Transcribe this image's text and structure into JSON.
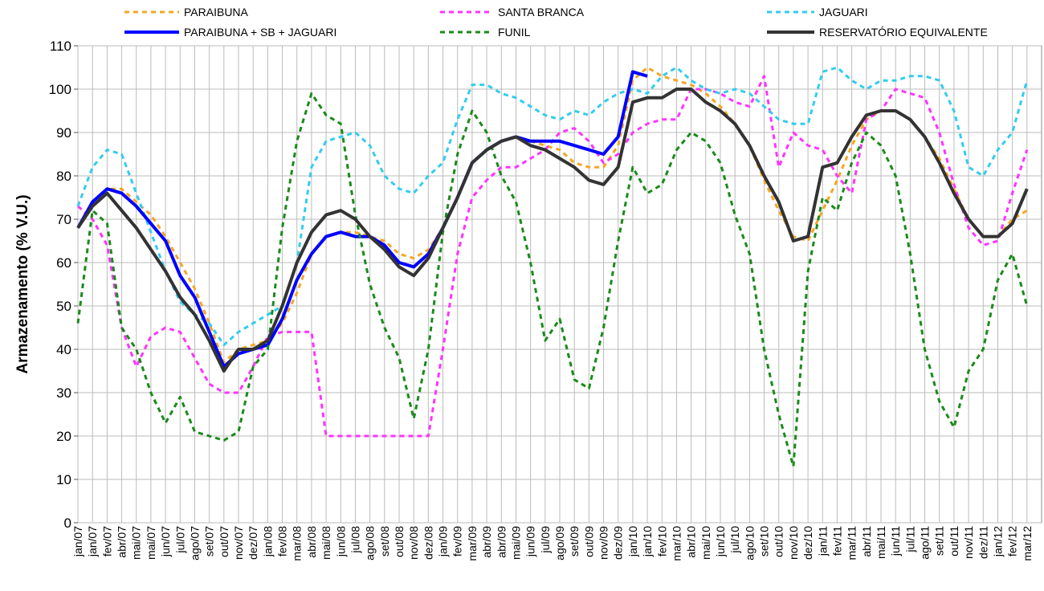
{
  "chart_data": {
    "type": "line",
    "y_label": "Armazenamento (% V.U.)",
    "categories": [
      "jan/07",
      "jan/07",
      "fev/07",
      "abr/07",
      "mai/07",
      "mai/07",
      "jun/07",
      "jul/07",
      "ago/07",
      "set/07",
      "out/07",
      "nov/07",
      "dez/07",
      "jan/08",
      "fev/08",
      "mar/08",
      "abr/08",
      "mai/08",
      "jun/08",
      "jul/08",
      "ago/08",
      "set/08",
      "out/08",
      "nov/08",
      "dez/08",
      "jan/09",
      "fev/09",
      "mar/09",
      "abr/09",
      "abr/09",
      "mai/09",
      "jun/09",
      "jul/09",
      "ago/09",
      "set/09",
      "out/09",
      "nov/09",
      "dez/09",
      "jan/10",
      "jan/10",
      "fev/10",
      "mar/10",
      "abr/10",
      "mai/10",
      "jun/10",
      "jul/10",
      "ago/10",
      "set/10",
      "out/10",
      "nov/10",
      "dez/10",
      "jan/11",
      "fev/11",
      "mar/11",
      "abr/11",
      "mai/11",
      "jun/11",
      "jul/11",
      "ago/11",
      "set/11",
      "out/11",
      "nov/11",
      "dez/11",
      "jan/12",
      "fev/12",
      "mar/12"
    ],
    "ylim": [
      0,
      110
    ],
    "yticks": [
      0,
      10,
      20,
      30,
      40,
      50,
      60,
      70,
      80,
      90,
      100,
      110
    ],
    "grid": true,
    "series": [
      {
        "name": "PARAIBUNA",
        "color": "#f5a623",
        "style": "dashed",
        "values": [
          68,
          74,
          77,
          77,
          74,
          71,
          66,
          60,
          54,
          46,
          37,
          40,
          41,
          42,
          46,
          53,
          62,
          66,
          67,
          67,
          66,
          65,
          62,
          61,
          63,
          68,
          75,
          83,
          86,
          88,
          89,
          88,
          87,
          86,
          83,
          82,
          82,
          87,
          102,
          105,
          103,
          102,
          101,
          99,
          96,
          92,
          87,
          79,
          72,
          66,
          65,
          72,
          79,
          87,
          93,
          95,
          95,
          93,
          89,
          84,
          77,
          70,
          66,
          66,
          70,
          72
        ]
      },
      {
        "name": "SANTA BRANCA",
        "color": "#ff33ff",
        "style": "dashed",
        "values": [
          73,
          70,
          64,
          45,
          36,
          43,
          45,
          44,
          38,
          32,
          30,
          30,
          36,
          43,
          44,
          44,
          44,
          20,
          20,
          20,
          20,
          20,
          20,
          20,
          20,
          40,
          62,
          75,
          79,
          82,
          82,
          84,
          86,
          90,
          91,
          88,
          83,
          85,
          90,
          92,
          93,
          93,
          100,
          100,
          99,
          97,
          96,
          103,
          82,
          90,
          87,
          86,
          80,
          76,
          93,
          95,
          100,
          99,
          98,
          90,
          78,
          68,
          64,
          65,
          76,
          86
        ]
      },
      {
        "name": "JAGUARI",
        "color": "#33ccee",
        "style": "dashed",
        "values": [
          73,
          82,
          86,
          85,
          76,
          67,
          58,
          51,
          48,
          46,
          41,
          44,
          46,
          48,
          50,
          60,
          82,
          88,
          89,
          90,
          87,
          80,
          77,
          76,
          80,
          83,
          93,
          101,
          101,
          99,
          98,
          96,
          94,
          93,
          95,
          94,
          97,
          99,
          100,
          99,
          103,
          105,
          102,
          100,
          99,
          100,
          99,
          96,
          93,
          92,
          92,
          104,
          105,
          102,
          100,
          102,
          102,
          103,
          103,
          102,
          95,
          82,
          80,
          86,
          90,
          102
        ]
      },
      {
        "name": "PARAIBUNA + SB + JAGUARI",
        "color": "#0000ff",
        "style": "solid",
        "values": [
          68,
          74,
          77,
          76,
          73,
          69,
          65,
          57,
          52,
          44,
          36,
          39,
          40,
          41,
          47,
          56,
          62,
          66,
          67,
          66,
          66,
          64,
          60,
          59,
          62,
          68,
          75,
          83,
          86,
          88,
          89,
          88,
          88,
          88,
          87,
          86,
          85,
          89,
          104,
          103,
          null,
          null,
          null,
          null,
          null,
          null,
          null,
          null,
          null,
          null,
          null,
          null,
          null,
          null,
          null,
          null,
          null,
          null,
          null,
          null,
          null,
          null,
          null,
          null,
          null,
          null
        ]
      },
      {
        "name": "FUNIL",
        "color": "#1a8a1a",
        "style": "dashed",
        "values": [
          46,
          72,
          69,
          45,
          40,
          30,
          23,
          29,
          21,
          20,
          19,
          21,
          36,
          40,
          68,
          88,
          99,
          94,
          92,
          71,
          55,
          45,
          38,
          24,
          40,
          67,
          85,
          95,
          90,
          80,
          74,
          60,
          42,
          47,
          33,
          31,
          45,
          65,
          82,
          76,
          78,
          86,
          90,
          88,
          83,
          71,
          62,
          40,
          25,
          13,
          58,
          75,
          72,
          83,
          90,
          87,
          80,
          62,
          40,
          28,
          22,
          35,
          40,
          56,
          62,
          50
        ]
      },
      {
        "name": "RESERVATÓRIO EQUIVALENTE",
        "color": "#333333",
        "style": "solid",
        "values": [
          68,
          73,
          76,
          72,
          68,
          63,
          58,
          52,
          48,
          42,
          35,
          40,
          40,
          42,
          50,
          60,
          67,
          71,
          72,
          70,
          66,
          63,
          59,
          57,
          61,
          68,
          75,
          83,
          86,
          88,
          89,
          87,
          86,
          84,
          82,
          79,
          78,
          82,
          97,
          98,
          98,
          100,
          100,
          97,
          95,
          92,
          87,
          80,
          74,
          65,
          66,
          82,
          83,
          89,
          94,
          95,
          95,
          93,
          89,
          83,
          76,
          70,
          66,
          66,
          69,
          77
        ]
      }
    ]
  }
}
